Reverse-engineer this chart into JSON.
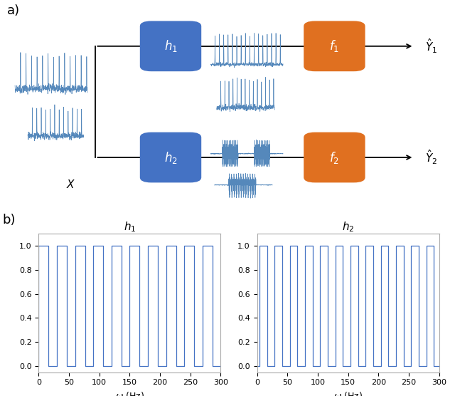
{
  "blue_box_color": "#4472C4",
  "orange_box_color": "#E07020",
  "signal_color": "#5588BB",
  "bg_color": "#ffffff",
  "panel_a_label": "a)",
  "panel_b_label": "b)",
  "h1_label": "$h_1$",
  "h2_label": "$h_2$",
  "f1_label": "$f_1$",
  "f2_label": "$f_2$",
  "Y1_label": "$\\hat{Y}_1$",
  "Y2_label": "$\\hat{Y}_2$",
  "X_label": "$X$",
  "plot1_title": "$h_1$",
  "plot2_title": "$h_2$",
  "xlabel": "$\\omega$ (Hz)",
  "xlim": [
    0,
    300
  ],
  "ylim": [
    -0.05,
    1.1
  ],
  "yticks": [
    0.0,
    0.2,
    0.4,
    0.6,
    0.8,
    1.0
  ],
  "xticks": [
    0,
    50,
    100,
    150,
    200,
    250,
    300
  ],
  "sq_color": "#4472C4"
}
